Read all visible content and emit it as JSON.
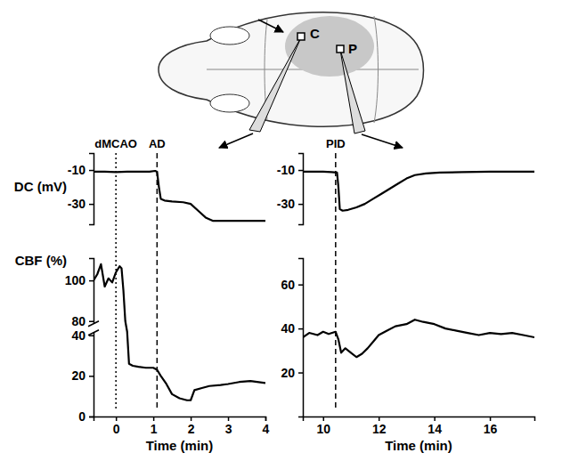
{
  "diagram": {
    "labels": [
      "C",
      "P"
    ]
  },
  "chart_data": [
    {
      "type": "line",
      "y_label": "DC (mV)",
      "tick_labels": "y",
      "color": "#000000",
      "xlim": [
        -0.6,
        4
      ],
      "ylim": [
        -42,
        0
      ],
      "yticks": [
        -10,
        -30
      ],
      "x": [
        -0.6,
        -0.3,
        0,
        0.3,
        0.6,
        0.9,
        1.05,
        1.1,
        1.15,
        1.2,
        1.3,
        1.5,
        1.8,
        2.0,
        2.2,
        2.4,
        2.6,
        3.0,
        3.5,
        4.0
      ],
      "values": [
        -11,
        -11,
        -11.2,
        -11,
        -11,
        -11,
        -10.5,
        -11,
        -20,
        -27,
        -28,
        -28.5,
        -29,
        -30,
        -34,
        -38,
        -40,
        -40,
        -40,
        -40
      ],
      "annotations": [
        {
          "text": "dMCAO",
          "x": 0,
          "line_style": "dotted"
        },
        {
          "text": "AD",
          "x": 1.1,
          "line_style": "dashed"
        }
      ]
    },
    {
      "type": "line",
      "y_label": "CBF (%)",
      "x_label": "Time (min)",
      "color": "#000000",
      "xlim": [
        -0.6,
        4
      ],
      "xticks": [
        0,
        1,
        2,
        3,
        4
      ],
      "ylim": [
        0,
        111
      ],
      "y_break": [
        40,
        80
      ],
      "yticks": [
        0,
        20,
        40,
        80,
        100
      ],
      "x": [
        -0.6,
        -0.5,
        -0.4,
        -0.3,
        -0.2,
        -0.1,
        0,
        0.1,
        0.15,
        0.2,
        0.25,
        0.3,
        0.35,
        0.45,
        0.6,
        0.8,
        1.0,
        1.1,
        1.2,
        1.35,
        1.5,
        1.7,
        1.9,
        2.0,
        2.1,
        2.3,
        2.5,
        2.8,
        3.0,
        3.3,
        3.6,
        4.0
      ],
      "values": [
        100,
        103,
        108,
        97,
        101,
        99,
        104,
        107,
        106,
        95,
        80,
        50,
        26,
        25,
        24.5,
        24,
        24,
        23,
        20,
        16,
        11,
        9,
        8,
        8,
        13,
        14,
        15,
        15.5,
        16,
        17,
        17.5,
        16.5
      ]
    },
    {
      "type": "line",
      "tick_labels": "y",
      "color": "#000000",
      "xlim": [
        9.27,
        17.6
      ],
      "ylim": [
        -42,
        0
      ],
      "yticks": [
        -10,
        -30
      ],
      "x": [
        9.27,
        9.6,
        10,
        10.3,
        10.5,
        10.55,
        10.6,
        10.7,
        10.9,
        11.2,
        11.5,
        11.8,
        12.1,
        12.4,
        12.7,
        13,
        13.3,
        13.7,
        14.2,
        15,
        16,
        17,
        17.6
      ],
      "values": [
        -11,
        -11,
        -11,
        -11.2,
        -11.5,
        -20,
        -33,
        -34,
        -33.5,
        -32,
        -30,
        -27,
        -24,
        -21,
        -18,
        -15,
        -13,
        -12,
        -11.5,
        -11.2,
        -11,
        -11,
        -11
      ],
      "annotations": [
        {
          "text": "PID",
          "x": 10.45,
          "line_style": "dashed"
        }
      ]
    },
    {
      "type": "line",
      "x_label": "Time (min)",
      "color": "#000000",
      "xlim": [
        9.27,
        17.6
      ],
      "xticks": [
        10,
        12,
        14,
        16
      ],
      "ylim": [
        0,
        72
      ],
      "yticks": [
        20,
        40,
        60
      ],
      "x": [
        9.27,
        9.5,
        9.8,
        10,
        10.2,
        10.45,
        10.55,
        10.65,
        10.8,
        11,
        11.2,
        11.4,
        11.6,
        11.8,
        12,
        12.3,
        12.6,
        13,
        13.3,
        13.6,
        14,
        14.4,
        14.8,
        15.2,
        15.6,
        16,
        16.4,
        16.8,
        17.2,
        17.6
      ],
      "values": [
        36,
        38,
        37,
        38.5,
        37.5,
        38.5,
        35,
        29,
        31,
        29,
        27,
        28.5,
        31,
        34,
        37,
        39,
        41,
        42,
        44,
        43,
        42,
        40,
        39,
        38,
        37,
        38,
        37.5,
        38,
        37,
        36
      ]
    }
  ]
}
